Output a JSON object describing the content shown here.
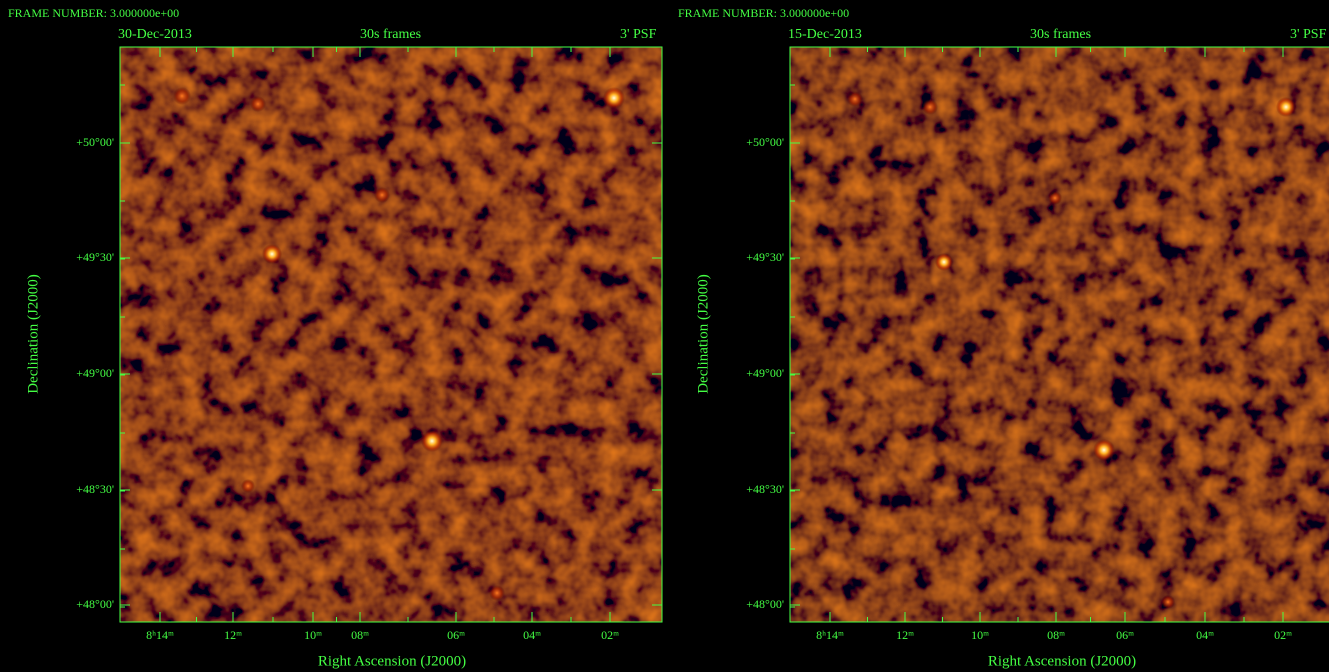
{
  "panels": [
    {
      "frame_label": "FRAME NUMBER: 3.000000e+00",
      "date": "30-Dec-2013",
      "cadence": "30s frames",
      "psf": "3' PSF",
      "y_axis_label": "Declination (J2000)",
      "x_axis_label": "Right Ascension (J2000)",
      "y_tick_labels": [
        "+50°00'",
        "+49°30'",
        "+49°00'",
        "+48°30'",
        "+48°00'"
      ],
      "x_tick_labels": [
        "8ʰ14ᵐ",
        "12ᵐ",
        "10ᵐ",
        "08ᵐ",
        "06ᵐ",
        "04ᵐ",
        "02ᵐ"
      ]
    },
    {
      "frame_label": "FRAME NUMBER: 3.000000e+00",
      "date": "15-Dec-2013",
      "cadence": "30s frames",
      "psf": "3' PSF",
      "y_axis_label": "Declination (J2000)",
      "x_axis_label": "Right Ascension (J2000)",
      "y_tick_labels": [
        "+50°00'",
        "+49°30'",
        "+49°00'",
        "+48°30'",
        "+48°00'"
      ],
      "x_tick_labels": [
        "8ʰ14ᵐ",
        "12ᵐ",
        "10ᵐ",
        "08ᵐ",
        "06ᵐ",
        "04ᵐ",
        "02ᵐ"
      ]
    }
  ]
}
